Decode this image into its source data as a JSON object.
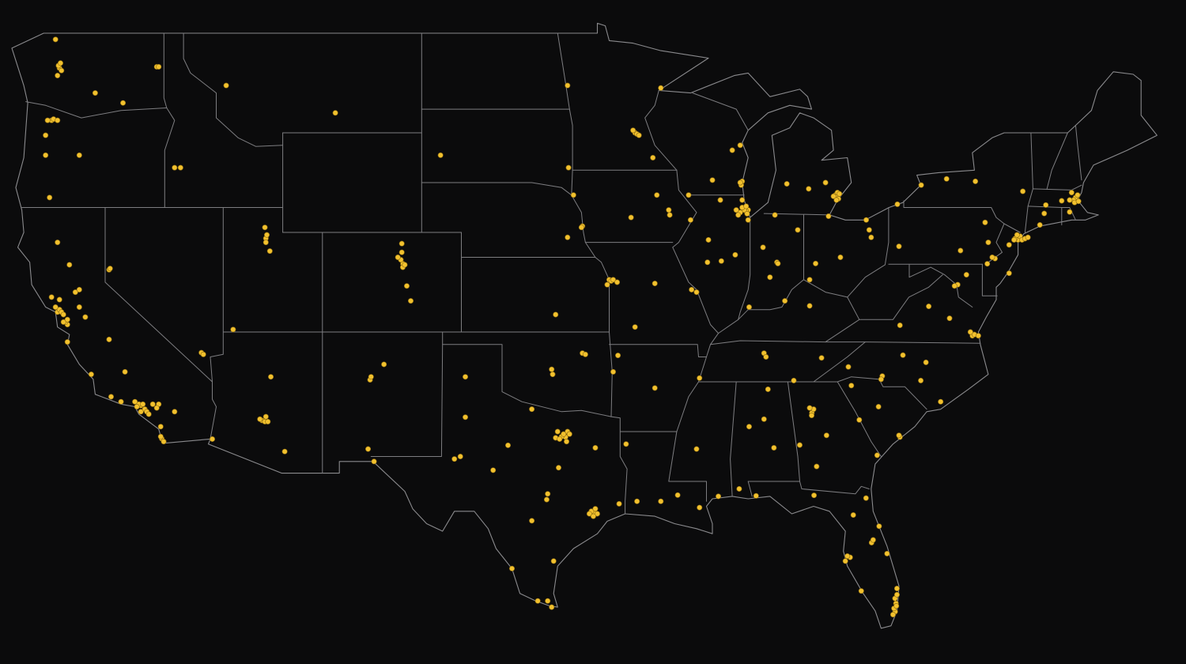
{
  "map": {
    "color": "#f2c12e",
    "points": [
      [
        -122.3,
        47.6
      ],
      [
        -122.2,
        47.5
      ],
      [
        -122.35,
        47.7
      ],
      [
        -122.4,
        47.3
      ],
      [
        -122.25,
        47.8
      ],
      [
        -122.5,
        48.75
      ],
      [
        -117.4,
        47.65
      ],
      [
        -117.3,
        47.65
      ],
      [
        -120.5,
        46.6
      ],
      [
        -119.1,
        46.2
      ],
      [
        -122.7,
        45.5
      ],
      [
        -122.6,
        45.55
      ],
      [
        -122.9,
        45.5
      ],
      [
        -122.4,
        45.5
      ],
      [
        -123.0,
        44.9
      ],
      [
        -123.0,
        44.1
      ],
      [
        -121.3,
        44.1
      ],
      [
        -122.8,
        42.4
      ],
      [
        -116.5,
        43.6
      ],
      [
        -116.2,
        43.6
      ],
      [
        -113.9,
        46.9
      ],
      [
        -108.4,
        45.8
      ],
      [
        -103.1,
        44.1
      ],
      [
        -96.7,
        46.9
      ],
      [
        -96.65,
        43.6
      ],
      [
        -96.4,
        42.5
      ],
      [
        -93.3,
        45.0
      ],
      [
        -93.2,
        44.95
      ],
      [
        -93.1,
        44.9
      ],
      [
        -93.4,
        45.1
      ],
      [
        -92.0,
        46.8
      ],
      [
        -92.4,
        44.0
      ],
      [
        -92.2,
        42.5
      ],
      [
        -93.5,
        41.6
      ],
      [
        -91.6,
        41.9
      ],
      [
        -91.55,
        41.7
      ],
      [
        -90.5,
        41.5
      ],
      [
        -96.7,
        40.8
      ],
      [
        -95.95,
        41.25
      ],
      [
        -96.0,
        41.2
      ],
      [
        -89.4,
        43.1
      ],
      [
        -87.9,
        43.05
      ],
      [
        -87.95,
        42.9
      ],
      [
        -88.0,
        43.0
      ],
      [
        -88.0,
        44.5
      ],
      [
        -88.4,
        44.3
      ],
      [
        -89.0,
        42.3
      ],
      [
        -90.6,
        42.5
      ],
      [
        -87.6,
        41.9
      ],
      [
        -87.7,
        41.85
      ],
      [
        -87.8,
        41.9
      ],
      [
        -87.9,
        42.0
      ],
      [
        -88.0,
        41.8
      ],
      [
        -87.7,
        42.05
      ],
      [
        -88.1,
        41.7
      ],
      [
        -87.65,
        41.75
      ],
      [
        -88.2,
        41.9
      ],
      [
        -87.9,
        42.3
      ],
      [
        -87.6,
        41.5
      ],
      [
        -89.6,
        40.7
      ],
      [
        -88.95,
        39.85
      ],
      [
        -89.65,
        39.8
      ],
      [
        -88.25,
        40.1
      ],
      [
        -90.2,
        38.6
      ],
      [
        -90.45,
        38.7
      ],
      [
        -86.15,
        39.8
      ],
      [
        -86.1,
        39.75
      ],
      [
        -86.85,
        40.4
      ],
      [
        -86.25,
        41.7
      ],
      [
        -85.1,
        41.1
      ],
      [
        -86.5,
        39.2
      ],
      [
        -85.75,
        38.25
      ],
      [
        -87.55,
        38.0
      ],
      [
        -82.95,
        40.0
      ],
      [
        -84.5,
        39.1
      ],
      [
        -84.2,
        39.75
      ],
      [
        -81.65,
        41.5
      ],
      [
        -81.5,
        41.1
      ],
      [
        -83.55,
        41.65
      ],
      [
        -81.4,
        40.8
      ],
      [
        -83.05,
        42.35
      ],
      [
        -83.2,
        42.5
      ],
      [
        -83.1,
        42.6
      ],
      [
        -83.3,
        42.45
      ],
      [
        -83.0,
        42.55
      ],
      [
        -83.15,
        42.3
      ],
      [
        -84.55,
        42.75
      ],
      [
        -85.65,
        42.95
      ],
      [
        -83.7,
        43.0
      ],
      [
        -84.5,
        38.05
      ],
      [
        -86.8,
        36.15
      ],
      [
        -86.7,
        36.0
      ],
      [
        -83.9,
        35.96
      ],
      [
        -85.3,
        35.05
      ],
      [
        -90.05,
        35.15
      ],
      [
        -92.3,
        34.75
      ],
      [
        -94.16,
        36.06
      ],
      [
        -94.4,
        35.4
      ],
      [
        -94.6,
        39.1
      ],
      [
        -94.5,
        39.05
      ],
      [
        -94.4,
        39.1
      ],
      [
        -94.2,
        39.0
      ],
      [
        -94.7,
        38.9
      ],
      [
        -93.3,
        37.2
      ],
      [
        -92.3,
        38.95
      ],
      [
        -97.3,
        37.7
      ],
      [
        -97.5,
        35.5
      ],
      [
        -97.45,
        35.3
      ],
      [
        -95.95,
        36.15
      ],
      [
        -95.8,
        36.1
      ],
      [
        -98.5,
        33.9
      ],
      [
        -104.99,
        39.74
      ],
      [
        -105.0,
        39.6
      ],
      [
        -104.9,
        39.7
      ],
      [
        -105.1,
        39.9
      ],
      [
        -105.05,
        40.55
      ],
      [
        -105.05,
        40.2
      ],
      [
        -105.25,
        40.0
      ],
      [
        -104.8,
        38.85
      ],
      [
        -104.6,
        38.25
      ],
      [
        -111.9,
        40.76
      ],
      [
        -111.9,
        40.6
      ],
      [
        -111.95,
        41.2
      ],
      [
        -111.7,
        40.25
      ],
      [
        -111.85,
        40.9
      ],
      [
        -113.55,
        37.1
      ],
      [
        -119.8,
        39.5
      ],
      [
        -119.75,
        39.55
      ],
      [
        -115.15,
        36.17
      ],
      [
        -115.05,
        36.1
      ],
      [
        -112.1,
        33.45
      ],
      [
        -111.95,
        33.4
      ],
      [
        -111.8,
        33.4
      ],
      [
        -112.2,
        33.5
      ],
      [
        -111.9,
        33.6
      ],
      [
        -110.95,
        32.2
      ],
      [
        -111.65,
        35.2
      ],
      [
        -114.6,
        32.7
      ],
      [
        -106.65,
        35.08
      ],
      [
        -106.6,
        35.2
      ],
      [
        -105.95,
        35.7
      ],
      [
        -106.75,
        32.3
      ],
      [
        -106.45,
        31.8
      ],
      [
        -96.8,
        32.78
      ],
      [
        -97.3,
        32.75
      ],
      [
        -97.0,
        32.8
      ],
      [
        -96.7,
        33.0
      ],
      [
        -97.1,
        32.7
      ],
      [
        -96.9,
        32.9
      ],
      [
        -96.6,
        32.9
      ],
      [
        -97.2,
        33.0
      ],
      [
        -96.75,
        32.6
      ],
      [
        -95.37,
        29.76
      ],
      [
        -95.5,
        29.8
      ],
      [
        -95.2,
        29.7
      ],
      [
        -95.6,
        29.7
      ],
      [
        -95.3,
        29.9
      ],
      [
        -95.4,
        29.6
      ],
      [
        -97.75,
        30.27
      ],
      [
        -97.7,
        30.5
      ],
      [
        -97.15,
        31.55
      ],
      [
        -98.5,
        29.42
      ],
      [
        -97.4,
        27.8
      ],
      [
        -101.85,
        35.2
      ],
      [
        -101.85,
        33.58
      ],
      [
        -102.1,
        32.0
      ],
      [
        -102.4,
        31.9
      ],
      [
        -99.7,
        32.45
      ],
      [
        -100.45,
        31.45
      ],
      [
        -95.3,
        32.35
      ],
      [
        -99.5,
        27.5
      ],
      [
        -97.5,
        25.95
      ],
      [
        -97.7,
        26.2
      ],
      [
        -98.2,
        26.2
      ],
      [
        -94.1,
        30.1
      ],
      [
        -91.15,
        30.45
      ],
      [
        -90.05,
        29.95
      ],
      [
        -92.0,
        30.2
      ],
      [
        -93.2,
        30.2
      ],
      [
        -93.75,
        32.5
      ],
      [
        -90.2,
        32.3
      ],
      [
        -89.1,
        30.4
      ],
      [
        -86.8,
        33.5
      ],
      [
        -86.6,
        34.7
      ],
      [
        -86.3,
        32.35
      ],
      [
        -88.05,
        30.7
      ],
      [
        -87.55,
        33.2
      ],
      [
        -84.39,
        33.75
      ],
      [
        -84.3,
        33.9
      ],
      [
        -84.5,
        33.95
      ],
      [
        -84.4,
        33.65
      ],
      [
        -83.65,
        32.85
      ],
      [
        -85.0,
        32.46
      ],
      [
        -81.1,
        32.05
      ],
      [
        -84.15,
        31.6
      ],
      [
        -82.0,
        33.47
      ],
      [
        -81.03,
        34.0
      ],
      [
        -79.95,
        32.78
      ],
      [
        -80.0,
        32.85
      ],
      [
        -82.4,
        34.85
      ],
      [
        -80.84,
        35.23
      ],
      [
        -80.9,
        35.1
      ],
      [
        -79.8,
        36.07
      ],
      [
        -78.64,
        35.78
      ],
      [
        -82.55,
        35.6
      ],
      [
        -78.9,
        35.05
      ],
      [
        -77.9,
        34.2
      ],
      [
        -77.45,
        37.55
      ],
      [
        -76.3,
        36.85
      ],
      [
        -76.2,
        36.9
      ],
      [
        -76.0,
        36.85
      ],
      [
        -76.4,
        37.0
      ],
      [
        -77.04,
        38.9
      ],
      [
        -77.2,
        38.85
      ],
      [
        -78.5,
        38.03
      ],
      [
        -79.95,
        37.27
      ],
      [
        -76.6,
        39.3
      ],
      [
        -75.16,
        39.95
      ],
      [
        -75.3,
        40.0
      ],
      [
        -80.0,
        40.44
      ],
      [
        -76.9,
        40.27
      ],
      [
        -75.5,
        40.6
      ],
      [
        -75.66,
        41.4
      ],
      [
        -80.08,
        42.13
      ],
      [
        -78.88,
        42.9
      ],
      [
        -77.6,
        43.15
      ],
      [
        -76.15,
        43.05
      ],
      [
        -73.76,
        42.65
      ],
      [
        -73.97,
        40.78
      ],
      [
        -74.0,
        40.7
      ],
      [
        -73.9,
        40.85
      ],
      [
        -74.15,
        40.75
      ],
      [
        -74.2,
        40.7
      ],
      [
        -73.8,
        40.7
      ],
      [
        -73.65,
        40.75
      ],
      [
        -74.05,
        40.9
      ],
      [
        -73.5,
        40.8
      ],
      [
        -72.9,
        41.3
      ],
      [
        -72.68,
        41.76
      ],
      [
        -71.4,
        41.82
      ],
      [
        -74.45,
        40.5
      ],
      [
        -74.45,
        39.36
      ],
      [
        -75.55,
        39.74
      ],
      [
        -71.06,
        42.36
      ],
      [
        -71.1,
        42.4
      ],
      [
        -71.2,
        42.3
      ],
      [
        -71.0,
        42.5
      ],
      [
        -71.3,
        42.6
      ],
      [
        -71.15,
        42.2
      ],
      [
        -70.95,
        42.25
      ],
      [
        -71.4,
        42.3
      ],
      [
        -71.8,
        42.27
      ],
      [
        -72.6,
        42.1
      ],
      [
        -80.19,
        25.77
      ],
      [
        -80.15,
        26.1
      ],
      [
        -80.1,
        26.7
      ],
      [
        -80.25,
        25.9
      ],
      [
        -80.2,
        26.3
      ],
      [
        -80.13,
        26.0
      ],
      [
        -80.3,
        25.65
      ],
      [
        -80.1,
        26.45
      ],
      [
        -81.38,
        28.54
      ],
      [
        -81.3,
        28.65
      ],
      [
        -82.46,
        27.95
      ],
      [
        -82.7,
        27.8
      ],
      [
        -82.6,
        28.0
      ],
      [
        -81.66,
        30.33
      ],
      [
        -82.3,
        29.65
      ],
      [
        -84.28,
        30.44
      ],
      [
        -81.9,
        26.6
      ],
      [
        -80.6,
        28.1
      ],
      [
        -81.0,
        29.2
      ],
      [
        -87.2,
        30.42
      ],
      [
        -122.4,
        37.8
      ],
      [
        -122.3,
        37.9
      ],
      [
        -122.2,
        37.8
      ],
      [
        -122.1,
        37.7
      ],
      [
        -121.9,
        37.3
      ],
      [
        -122.0,
        37.4
      ],
      [
        -122.1,
        37.4
      ],
      [
        -121.9,
        37.5
      ],
      [
        -122.5,
        38.0
      ],
      [
        -122.7,
        38.4
      ],
      [
        -122.3,
        38.3
      ],
      [
        -121.5,
        38.6
      ],
      [
        -121.3,
        38.7
      ],
      [
        -121.3,
        38.0
      ],
      [
        -121.0,
        37.6
      ],
      [
        -119.8,
        36.7
      ],
      [
        -119.0,
        35.4
      ],
      [
        -121.9,
        36.6
      ],
      [
        -120.7,
        35.3
      ],
      [
        -122.4,
        40.6
      ],
      [
        -121.8,
        39.7
      ],
      [
        -119.7,
        34.4
      ],
      [
        -119.2,
        34.2
      ],
      [
        -118.2,
        34.05
      ],
      [
        -118.3,
        34.1
      ],
      [
        -118.4,
        34.0
      ],
      [
        -118.1,
        34.1
      ],
      [
        -118.0,
        33.9
      ],
      [
        -117.9,
        33.8
      ],
      [
        -117.8,
        33.7
      ],
      [
        -118.2,
        33.8
      ],
      [
        -118.5,
        34.2
      ],
      [
        -117.6,
        34.1
      ],
      [
        -117.3,
        34.1
      ],
      [
        -117.4,
        33.95
      ],
      [
        -117.2,
        33.2
      ],
      [
        -117.15,
        32.72
      ],
      [
        -117.2,
        32.8
      ],
      [
        -117.05,
        32.6
      ],
      [
        -116.5,
        33.8
      ]
    ]
  }
}
